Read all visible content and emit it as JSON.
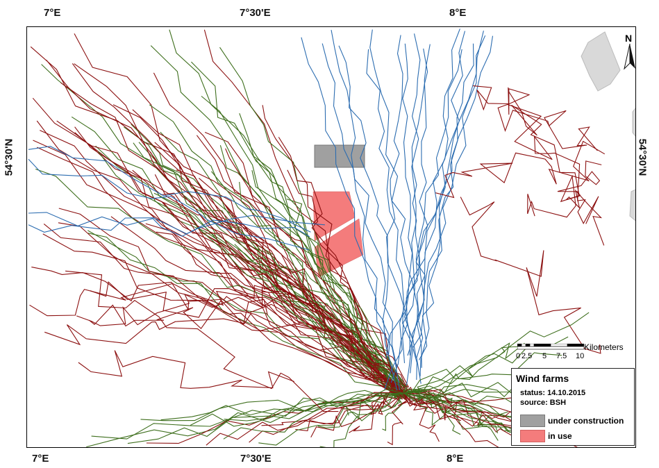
{
  "axes": {
    "top": [
      "7°E",
      "7°30'E",
      "8°E"
    ],
    "bottom": [
      "7°E",
      "7°30'E",
      "8°E"
    ],
    "left": "54°30'N",
    "right": "54°30'N"
  },
  "north_arrow": "N",
  "scalebar": {
    "unit": "Kilometers",
    "ticks": [
      "0",
      "2.5",
      "5",
      "7.5",
      "10"
    ]
  },
  "legend": {
    "title": "Wind farms",
    "status": "status: 14.10.2015",
    "source": "source: BSH",
    "items": [
      {
        "label": "under construction",
        "color": "#a0a0a0"
      },
      {
        "label": "in use",
        "color": "#f47c7c"
      }
    ]
  },
  "colors": {
    "track_red": "#8b0f0f",
    "track_green": "#3d6e1c",
    "track_blue": "#2b6cb0",
    "land": "#d9d9d9"
  }
}
